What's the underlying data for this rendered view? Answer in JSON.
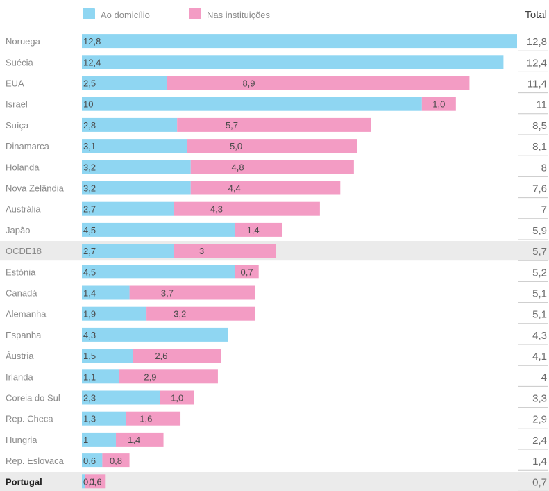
{
  "colors": {
    "domicile": "#8fd6f2",
    "institutions": "#f39cc4",
    "highlight_row": "#ebebeb"
  },
  "legend": {
    "domicile": "Ao domicílio",
    "institutions": "Nas instituições"
  },
  "total_header": "Total",
  "chart_data": {
    "type": "bar",
    "orientation": "horizontal",
    "stacked": true,
    "categories": [
      "Noruega",
      "Suécia",
      "EUA",
      "Israel",
      "Suíça",
      "Dinamarca",
      "Holanda",
      "Nova Zelândia",
      "Austrália",
      "Japão",
      "OCDE18",
      "Estónia",
      "Canadá",
      "Alemanha",
      "Espanha",
      "Áustria",
      "Irlanda",
      "Coreia do Sul",
      "Rep. Checa",
      "Hungria",
      "Rep. Eslovaca",
      "Portugal"
    ],
    "series": [
      {
        "name": "Ao domicílio",
        "values": [
          12.8,
          12.4,
          2.5,
          10,
          2.8,
          3.1,
          3.2,
          3.2,
          2.7,
          4.5,
          2.7,
          4.5,
          1.4,
          1.9,
          4.3,
          1.5,
          1.1,
          2.3,
          1.3,
          1,
          0.6,
          0.1
        ],
        "labels": [
          "12,8",
          "12,4",
          "2,5",
          "10",
          "2,8",
          "3,1",
          "3,2",
          "3,2",
          "2,7",
          "4,5",
          "2,7",
          "4,5",
          "1,4",
          "1,9",
          "4,3",
          "1,5",
          "1,1",
          "2,3",
          "1,3",
          "1",
          "0,6",
          "0,1"
        ]
      },
      {
        "name": "Nas instituições",
        "values": [
          0,
          0,
          8.9,
          1.0,
          5.7,
          5.0,
          4.8,
          4.4,
          4.3,
          1.4,
          3,
          0.7,
          3.7,
          3.2,
          0,
          2.6,
          2.9,
          1.0,
          1.6,
          1.4,
          0.8,
          0.6
        ],
        "labels": [
          "",
          "",
          "8,9",
          "1,0",
          "5,7",
          "5,0",
          "4,8",
          "4,4",
          "4,3",
          "1,4",
          "3",
          "0,7",
          "3,7",
          "3,2",
          "",
          "2,6",
          "2,9",
          "1,0",
          "1,6",
          "1,4",
          "0,8",
          "0,6"
        ]
      }
    ],
    "totals": [
      "12,8",
      "12,4",
      "11,4",
      "11",
      "8,5",
      "8,1",
      "8",
      "7,6",
      "7",
      "5,9",
      "5,7",
      "5,2",
      "5,1",
      "5,1",
      "4,3",
      "4,1",
      "4",
      "3,3",
      "2,9",
      "2,4",
      "1,4",
      "0,7"
    ],
    "highlight_rows": [
      "OCDE18",
      "Portugal"
    ],
    "bold_rows": [
      "Portugal"
    ],
    "xlim": [
      0,
      12.8
    ]
  }
}
